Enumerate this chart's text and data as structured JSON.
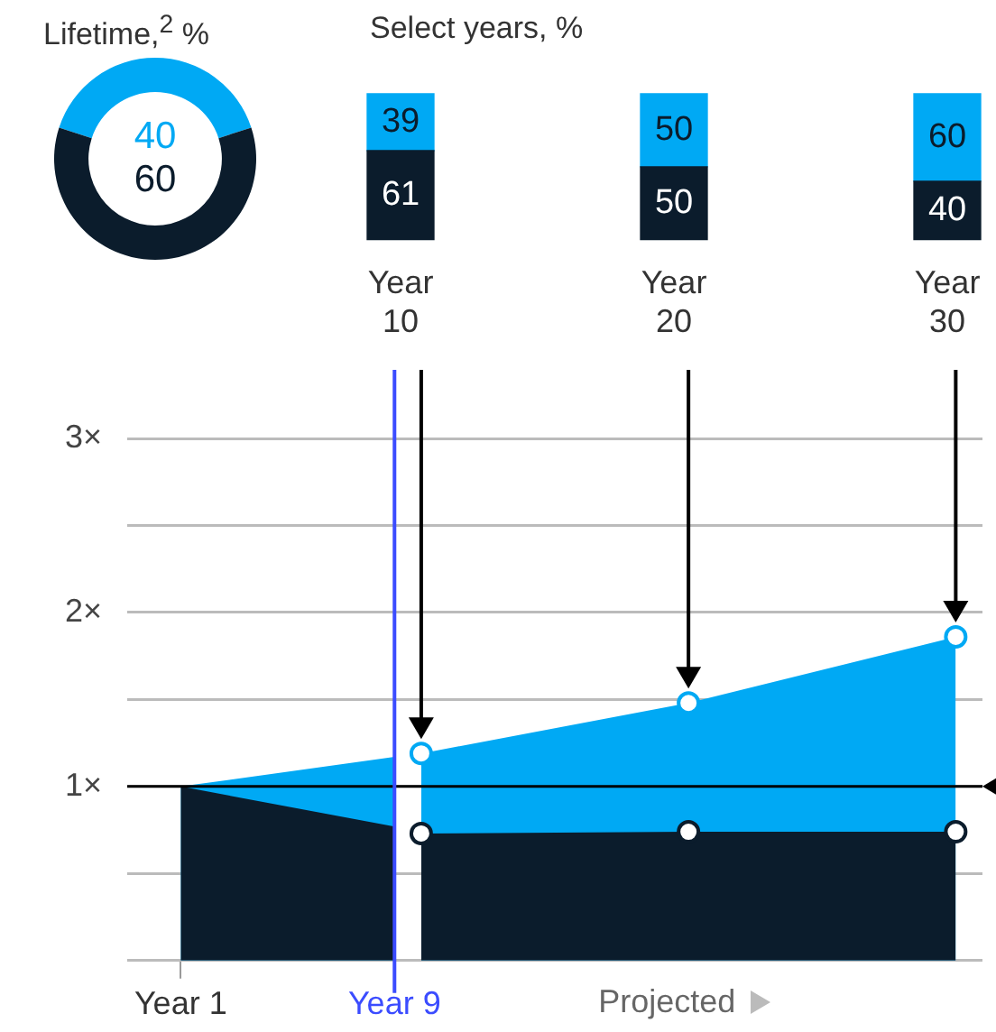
{
  "chart_data": [
    {
      "type": "donut",
      "title": "Lifetime,$^{2}$ %",
      "categories": [
        null,
        null
      ],
      "values": [
        40,
        60
      ],
      "colors": [
        "#00a9f4",
        "#0b1c2c"
      ],
      "data_labels": true
    },
    {
      "type": "bar",
      "title": "Select years, %",
      "categories": [
        "Year 10",
        "Year 20",
        "Year 30"
      ],
      "stacked": true,
      "data_labels": true,
      "series": [
        {
          "color": "#0b1c2c",
          "values": [
            61,
            50,
            40
          ]
        },
        {
          "color": "#00a9f4",
          "values": [
            39,
            50,
            60
          ]
        }
      ]
    },
    {
      "type": "area",
      "categories": [
        null,
        null,
        "Year 1",
        null,
        null,
        null,
        null,
        null,
        null,
        null,
        "Year 9",
        null,
        null,
        null,
        null,
        null,
        null,
        null,
        null,
        null,
        null,
        null,
        null,
        null,
        null,
        null,
        null,
        null,
        null,
        null,
        null,
        null,
        null
      ],
      "ylim": [
        0,
        3
      ],
      "yticks": [
        {
          "value": 0,
          "label": null
        },
        {
          "value": 0.5,
          "label": null
        },
        {
          "value": 1,
          "label": "1×"
        },
        {
          "value": 1.5,
          "label": null
        },
        {
          "value": 2,
          "label": "2×"
        },
        {
          "value": 2.5,
          "label": null
        },
        {
          "value": 3,
          "label": "3×"
        }
      ],
      "grid": "y",
      "ref_lines": [
        {
          "axis": "y",
          "value": 1,
          "color": "#000000"
        },
        {
          "axis": "x",
          "value": "Year 9",
          "color": "#3b4cff"
        }
      ],
      "annotations": [
        "Projected"
      ],
      "series": [
        {
          "color": "#00a9f4",
          "values": [
            null,
            null,
            1,
            null,
            null,
            null,
            null,
            null,
            null,
            null,
            1.17,
            null,
            null,
            null,
            null,
            null,
            null,
            null,
            null,
            null,
            null,
            null,
            null,
            null,
            null,
            null,
            null,
            null,
            null,
            null,
            null,
            null,
            null
          ]
        },
        {
          "color": "#0b1c2c",
          "values": [
            null,
            null,
            1,
            null,
            null,
            null,
            null,
            null,
            null,
            null,
            0.77,
            null,
            null,
            null,
            null,
            null,
            null,
            null,
            null,
            null,
            null,
            null,
            null,
            null,
            null,
            null,
            null,
            null,
            null,
            null,
            null,
            null,
            null
          ]
        },
        {
          "color": "#00a9f4",
          "marker": "circle",
          "values": [
            null,
            null,
            null,
            null,
            null,
            null,
            null,
            null,
            null,
            null,
            null,
            1.19,
            null,
            null,
            null,
            null,
            null,
            null,
            null,
            null,
            null,
            1.48,
            null,
            null,
            null,
            null,
            null,
            null,
            null,
            null,
            null,
            1.86,
            null
          ]
        },
        {
          "color": "#0b1c2c",
          "marker": "circle",
          "values": [
            null,
            null,
            null,
            null,
            null,
            null,
            null,
            null,
            null,
            null,
            null,
            0.73,
            null,
            null,
            null,
            null,
            null,
            null,
            null,
            null,
            null,
            0.74,
            null,
            null,
            null,
            null,
            null,
            null,
            null,
            null,
            null,
            0.74,
            null
          ]
        }
      ]
    }
  ]
}
